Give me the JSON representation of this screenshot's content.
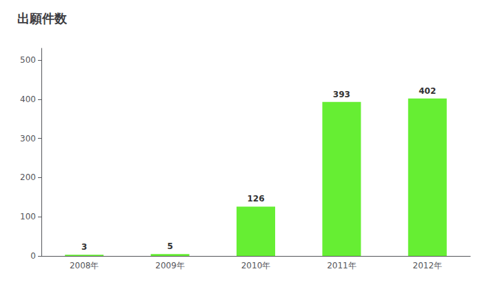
{
  "chart_data": {
    "type": "bar",
    "title": "出願件数",
    "categories": [
      "2008年",
      "2009年",
      "2010年",
      "2011年",
      "2012年"
    ],
    "values": [
      3,
      5,
      126,
      393,
      402
    ],
    "color": "#66ee33",
    "ylim": [
      0,
      530
    ],
    "yticks": [
      0,
      100,
      200,
      300,
      400,
      500
    ],
    "grid": false,
    "data_labels": true
  }
}
